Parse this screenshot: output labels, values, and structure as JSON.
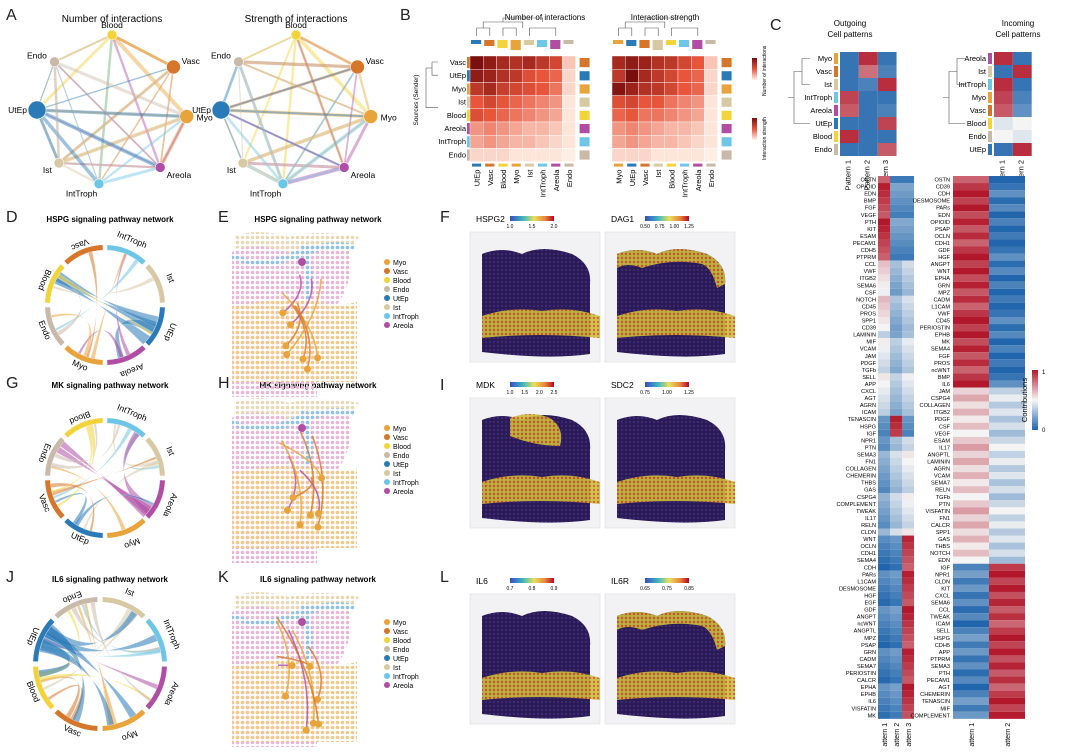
{
  "panels": {
    "A": {
      "letter": "A",
      "title1": "Number of interactions",
      "title2": "Strength of interactions",
      "nodes": [
        "Blood",
        "Vasc",
        "Myo",
        "Areola",
        "IntTroph",
        "Ist",
        "UtEp",
        "Endo"
      ]
    },
    "B": {
      "letter": "B",
      "title1": "Number of interactions",
      "title2": "Interaction strength",
      "ylabel": "Sources (Sender)",
      "rows": [
        "Vasc",
        "UtEp",
        "Myo",
        "Ist",
        "Blood",
        "Areola",
        "IntTroph",
        "Endo"
      ],
      "cols1": [
        "UtEp",
        "Vasc",
        "Blood",
        "Myo",
        "Ist",
        "IntTroph",
        "Areola",
        "Endo"
      ],
      "cols2": [
        "Myo",
        "UtEp",
        "Vasc",
        "Ist",
        "Blood",
        "IntTroph",
        "Areola",
        "Endo"
      ],
      "legend1": "Number of interactions",
      "legend2": "Interaction strength"
    },
    "C": {
      "letter": "C",
      "out_title": "Outgoing\nCell patterns",
      "in_title": "Incoming\nCell patterns",
      "out_rows": [
        "Myo",
        "Vasc",
        "Ist",
        "IntTroph",
        "Areola",
        "UtEp",
        "Blood",
        "Endo"
      ],
      "in_rows": [
        "Areola",
        "Ist",
        "IntTroph",
        "Myo",
        "Vasc",
        "Blood",
        "Endo",
        "UtEp"
      ],
      "out_cols": [
        "Pattern 1",
        "Pattern 2",
        "Pattern 3"
      ],
      "in_cols": [
        "Pattern 1",
        "Pattern 2"
      ]
    },
    "D": {
      "letter": "D",
      "title": "HSPG signaling pathway network"
    },
    "E": {
      "letter": "E",
      "title": "HSPG signaling pathway network"
    },
    "F": {
      "letter": "F",
      "gene1": "HSPG2",
      "ticks1": [
        "1.0",
        "1.5",
        "2.0"
      ],
      "gene2": "DAG1",
      "ticks2": [
        "0.50",
        "0.75",
        "1.00",
        "1.25"
      ]
    },
    "G": {
      "letter": "G",
      "title": "MK signaling pathway network"
    },
    "H": {
      "letter": "H",
      "title": "MK signaling pathway network"
    },
    "I": {
      "letter": "I",
      "gene1": "MDK",
      "ticks1": [
        "1.0",
        "1.5",
        "2.0",
        "2.5"
      ],
      "gene2": "SDC2",
      "ticks2": [
        "0.75",
        "1.00",
        "1.25"
      ]
    },
    "J": {
      "letter": "J",
      "title": "IL6 signaling pathway network"
    },
    "K": {
      "letter": "K",
      "title": "IL6 signaling pathway network"
    },
    "L": {
      "letter": "L",
      "gene1": "IL6",
      "ticks1": [
        "0.7",
        "0.8",
        "0.9"
      ],
      "gene2": "IL6R",
      "ticks2": [
        "0.65",
        "0.75",
        "0.85"
      ]
    }
  },
  "chord_labels": {
    "D": [
      "IntTroph",
      "Ist",
      "UtEp",
      "Areola",
      "Myo",
      "Endo",
      "Blood",
      "Vasc"
    ],
    "G": [
      "IntTroph",
      "Ist",
      "Areola",
      "Myo",
      "UtEp",
      "Vasc",
      "Endo",
      "Blood"
    ],
    "J": [
      "Ist",
      "IntTroph",
      "Areola",
      "Myo",
      "Vasc",
      "Blood",
      "UtEp",
      "Endo"
    ]
  },
  "spatial_legend_E": [
    "Myo",
    "Vasc",
    "Blood",
    "Endo",
    "UtEp",
    "Ist",
    "IntTroph",
    "Areola"
  ],
  "spatial_legend_H": [
    "Myo",
    "Vasc",
    "Blood",
    "Endo",
    "UtEp",
    "Ist",
    "IntTroph",
    "Areola"
  ],
  "spatial_legend_K": [
    "Myo",
    "Vasc",
    "Blood",
    "Endo",
    "UtEp",
    "Ist",
    "IntTroph",
    "Areola"
  ],
  "colors": {
    "Myo": "#e8a33a",
    "Vasc": "#d6762a",
    "Blood": "#f2d33a",
    "Endo": "#c9b9a8",
    "UtEp": "#2a7ab8",
    "Ist": "#d8c9a5",
    "IntTroph": "#6ec6e6",
    "Areola": "#b04ea6"
  },
  "out_signals": [
    "OSTN",
    "OPIOID",
    "EDN",
    "BMP",
    "FGF",
    "VEGF",
    "PTH",
    "KIT",
    "ESAM",
    "PECAM1",
    "CDH5",
    "PTPRM",
    "CCL",
    "VWF",
    "ITGB2",
    "SEMA6",
    "CSF",
    "NOTCH",
    "CD45",
    "PROS",
    "SPP1",
    "CD39",
    "LAMININ",
    "MIF",
    "VCAM",
    "JAM",
    "PDGF",
    "TGFb",
    "SELL",
    "APP",
    "CXCL",
    "AGT",
    "AGRN",
    "ICAM",
    "TENASCIN",
    "HSPG",
    "IGF",
    "NPR1",
    "PTN",
    "SEMA3",
    "FN1",
    "COLLAGEN",
    "CHEMERIN",
    "THBS",
    "GAS",
    "CSPG4",
    "COMPLEMENT",
    "TWEAK",
    "IL17",
    "RELN",
    "CLDN",
    "WNT",
    "OCLN",
    "CDH1",
    "SEMA4",
    "CDH",
    "PARs",
    "L1CAM",
    "DESMOSOME",
    "HGF",
    "EGF",
    "GDF",
    "ANGPT",
    "ncWNT",
    "ANGPTL",
    "MPZ",
    "PSAP",
    "GRN",
    "CADM",
    "SEMA7",
    "PERIOSTIN",
    "CALCR",
    "EPHA",
    "EPHB",
    "IL6",
    "VISFATIN",
    "MK"
  ],
  "in_signals": [
    "OSTN",
    "CD39",
    "CDH",
    "DESMOSOME",
    "PARs",
    "EDN",
    "OPIOID",
    "PSAP",
    "OCLN",
    "CDH1",
    "GDF",
    "HGF",
    "ANGPT",
    "WNT",
    "EPHA",
    "GRN",
    "MPZ",
    "CADM",
    "L1CAM",
    "VWF",
    "CD45",
    "PERIOSTIN",
    "EPHB",
    "MK",
    "SEMA4",
    "FGF",
    "PROS",
    "ncWNT",
    "BMP",
    "IL6",
    "JAM",
    "CSPG4",
    "COLLAGEN",
    "ITGB2",
    "PDGF",
    "CSF",
    "VEGF",
    "ESAM",
    "IL17",
    "ANGPTL",
    "LAMININ",
    "AGRN",
    "VCAM",
    "SEMA7",
    "RELN",
    "TGFb",
    "PTN",
    "VISFATIN",
    "FN1",
    "CALCR",
    "SPP1",
    "GAS",
    "THBS",
    "NOTCH",
    "EDN",
    "IGF",
    "NPR1",
    "CLDN",
    "KIT",
    "CXCL",
    "SEMA6",
    "CCL",
    "TWEAK",
    "ICAM",
    "SELL",
    "HSPG",
    "CDH5",
    "APP",
    "PTPRM",
    "SEMA3",
    "PTH",
    "PECAM1",
    "AGT",
    "CHEMERIN",
    "TENASCIN",
    "MIF",
    "COMPLEMENT"
  ],
  "contrib_legend": {
    "title": "Contributions",
    "max": "1",
    "min": "0"
  },
  "out_pattern_labels": [
    "Pattern 1",
    "Pattern 2",
    "Pattern 3"
  ],
  "in_pattern_labels": [
    "Pattern 1",
    "Pattern 2"
  ]
}
